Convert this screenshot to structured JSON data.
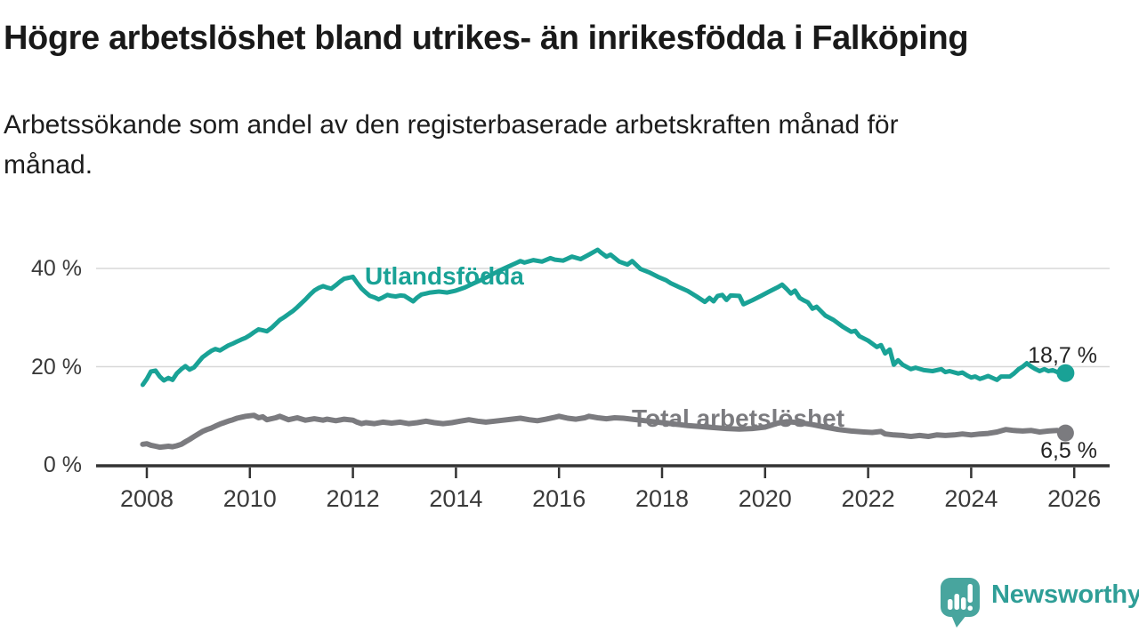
{
  "header": {
    "title": "Högre arbetslöshet bland utrikes- än inrikesfödda i Falköping",
    "subtitle_line1": "Arbetssökande som andel av den registerbaserade arbetskraften månad för",
    "subtitle_line2": "månad."
  },
  "branding": {
    "wordmark": "Newsworthy",
    "logo_color": "#48a59e",
    "wordmark_color": "#2f9e97"
  },
  "chart_data": {
    "type": "line",
    "title": "Högre arbetslöshet bland utrikes- än inrikesfödda i Falköping",
    "subtitle": "Arbetssökande som andel av den registerbaserade arbetskraften månad för månad.",
    "grid": true,
    "grid_color": "#d8d8d8",
    "axis_color": "#333333",
    "tick_label_color": "#3a3a3a",
    "legend_position": "inline-labels",
    "x_axis": {
      "ticks": [
        2008,
        2010,
        2012,
        2014,
        2016,
        2018,
        2020,
        2022,
        2024,
        2026
      ],
      "range": [
        2007.8,
        2026.6
      ]
    },
    "y_axis": {
      "unit": "%",
      "range": [
        0,
        46
      ],
      "ticks": [
        {
          "value": 0,
          "label": "0 %"
        },
        {
          "value": 20,
          "label": "20 %"
        },
        {
          "value": 40,
          "label": "40 %"
        }
      ]
    },
    "series": [
      {
        "name": "Utlandsfödda",
        "color": "#19a296",
        "end_value": 18.7,
        "end_label": "18,7 %",
        "points": [
          [
            2007.92,
            16.3
          ],
          [
            2008.0,
            17.5
          ],
          [
            2008.08,
            19.0
          ],
          [
            2008.17,
            19.2
          ],
          [
            2008.25,
            18.0
          ],
          [
            2008.33,
            17.2
          ],
          [
            2008.42,
            17.7
          ],
          [
            2008.5,
            17.3
          ],
          [
            2008.58,
            18.6
          ],
          [
            2008.67,
            19.5
          ],
          [
            2008.75,
            20.1
          ],
          [
            2008.83,
            19.4
          ],
          [
            2008.92,
            19.9
          ],
          [
            2009.0,
            20.9
          ],
          [
            2009.08,
            21.9
          ],
          [
            2009.17,
            22.6
          ],
          [
            2009.25,
            23.2
          ],
          [
            2009.33,
            23.6
          ],
          [
            2009.42,
            23.3
          ],
          [
            2009.5,
            23.8
          ],
          [
            2009.58,
            24.3
          ],
          [
            2009.67,
            24.7
          ],
          [
            2009.75,
            25.1
          ],
          [
            2009.83,
            25.5
          ],
          [
            2009.92,
            25.9
          ],
          [
            2010.0,
            26.4
          ],
          [
            2010.08,
            27.0
          ],
          [
            2010.17,
            27.6
          ],
          [
            2010.25,
            27.4
          ],
          [
            2010.33,
            27.2
          ],
          [
            2010.42,
            27.9
          ],
          [
            2010.5,
            28.7
          ],
          [
            2010.58,
            29.5
          ],
          [
            2010.67,
            30.1
          ],
          [
            2010.75,
            30.7
          ],
          [
            2010.83,
            31.3
          ],
          [
            2010.92,
            32.1
          ],
          [
            2011.0,
            32.9
          ],
          [
            2011.08,
            33.7
          ],
          [
            2011.17,
            34.7
          ],
          [
            2011.25,
            35.5
          ],
          [
            2011.33,
            36.0
          ],
          [
            2011.42,
            36.4
          ],
          [
            2011.5,
            36.1
          ],
          [
            2011.58,
            35.9
          ],
          [
            2011.67,
            36.6
          ],
          [
            2011.75,
            37.3
          ],
          [
            2011.83,
            37.9
          ],
          [
            2011.92,
            38.1
          ],
          [
            2012.0,
            38.3
          ],
          [
            2012.08,
            37.1
          ],
          [
            2012.17,
            35.9
          ],
          [
            2012.25,
            35.1
          ],
          [
            2012.33,
            34.4
          ],
          [
            2012.42,
            34.1
          ],
          [
            2012.5,
            33.7
          ],
          [
            2012.58,
            34.1
          ],
          [
            2012.67,
            34.6
          ],
          [
            2012.75,
            34.4
          ],
          [
            2012.83,
            34.3
          ],
          [
            2012.92,
            34.5
          ],
          [
            2013.0,
            34.4
          ],
          [
            2013.08,
            33.9
          ],
          [
            2013.17,
            33.3
          ],
          [
            2013.25,
            34.1
          ],
          [
            2013.33,
            34.7
          ],
          [
            2013.42,
            34.9
          ],
          [
            2013.5,
            35.1
          ],
          [
            2013.67,
            35.3
          ],
          [
            2013.83,
            35.1
          ],
          [
            2014.0,
            35.5
          ],
          [
            2014.17,
            36.1
          ],
          [
            2014.33,
            36.9
          ],
          [
            2014.5,
            37.7
          ],
          [
            2014.67,
            38.6
          ],
          [
            2014.83,
            39.5
          ],
          [
            2015.0,
            40.3
          ],
          [
            2015.17,
            41.1
          ],
          [
            2015.25,
            41.5
          ],
          [
            2015.33,
            41.2
          ],
          [
            2015.5,
            41.7
          ],
          [
            2015.67,
            41.4
          ],
          [
            2015.83,
            42.1
          ],
          [
            2015.92,
            41.8
          ],
          [
            2016.08,
            41.6
          ],
          [
            2016.25,
            42.4
          ],
          [
            2016.42,
            41.9
          ],
          [
            2016.58,
            42.8
          ],
          [
            2016.75,
            43.8
          ],
          [
            2016.83,
            43.1
          ],
          [
            2016.92,
            42.4
          ],
          [
            2017.0,
            42.8
          ],
          [
            2017.17,
            41.4
          ],
          [
            2017.33,
            40.8
          ],
          [
            2017.42,
            41.5
          ],
          [
            2017.58,
            39.9
          ],
          [
            2017.75,
            39.2
          ],
          [
            2017.92,
            38.3
          ],
          [
            2018.08,
            37.6
          ],
          [
            2018.17,
            37.0
          ],
          [
            2018.33,
            36.2
          ],
          [
            2018.5,
            35.4
          ],
          [
            2018.67,
            34.3
          ],
          [
            2018.83,
            33.2
          ],
          [
            2018.92,
            34.0
          ],
          [
            2019.0,
            33.3
          ],
          [
            2019.08,
            34.4
          ],
          [
            2019.17,
            34.6
          ],
          [
            2019.25,
            33.6
          ],
          [
            2019.33,
            34.5
          ],
          [
            2019.5,
            34.4
          ],
          [
            2019.58,
            32.7
          ],
          [
            2019.75,
            33.5
          ],
          [
            2019.92,
            34.4
          ],
          [
            2020.08,
            35.3
          ],
          [
            2020.25,
            36.2
          ],
          [
            2020.33,
            36.7
          ],
          [
            2020.42,
            35.8
          ],
          [
            2020.5,
            34.9
          ],
          [
            2020.58,
            35.5
          ],
          [
            2020.67,
            34.0
          ],
          [
            2020.75,
            33.5
          ],
          [
            2020.83,
            33.1
          ],
          [
            2020.92,
            31.8
          ],
          [
            2021.0,
            32.2
          ],
          [
            2021.17,
            30.4
          ],
          [
            2021.33,
            29.5
          ],
          [
            2021.5,
            28.2
          ],
          [
            2021.67,
            27.1
          ],
          [
            2021.75,
            27.3
          ],
          [
            2021.83,
            26.2
          ],
          [
            2022.0,
            25.3
          ],
          [
            2022.17,
            24.0
          ],
          [
            2022.25,
            24.4
          ],
          [
            2022.33,
            22.7
          ],
          [
            2022.42,
            23.5
          ],
          [
            2022.5,
            20.4
          ],
          [
            2022.58,
            21.3
          ],
          [
            2022.67,
            20.4
          ],
          [
            2022.83,
            19.5
          ],
          [
            2022.92,
            19.8
          ],
          [
            2023.08,
            19.3
          ],
          [
            2023.25,
            19.1
          ],
          [
            2023.42,
            19.5
          ],
          [
            2023.5,
            18.9
          ],
          [
            2023.58,
            19.1
          ],
          [
            2023.75,
            18.6
          ],
          [
            2023.83,
            18.8
          ],
          [
            2023.92,
            18.2
          ],
          [
            2024.0,
            17.8
          ],
          [
            2024.08,
            18.0
          ],
          [
            2024.17,
            17.5
          ],
          [
            2024.25,
            17.8
          ],
          [
            2024.33,
            18.1
          ],
          [
            2024.5,
            17.3
          ],
          [
            2024.58,
            18.0
          ],
          [
            2024.75,
            18.0
          ],
          [
            2024.83,
            18.6
          ],
          [
            2024.92,
            19.5
          ],
          [
            2025.0,
            20.0
          ],
          [
            2025.08,
            20.7
          ],
          [
            2025.17,
            20.0
          ],
          [
            2025.25,
            19.5
          ],
          [
            2025.33,
            19.1
          ],
          [
            2025.42,
            19.5
          ],
          [
            2025.5,
            19.1
          ],
          [
            2025.58,
            19.3
          ],
          [
            2025.67,
            18.9
          ],
          [
            2025.83,
            18.7
          ]
        ]
      },
      {
        "name": "Total arbetslöshet",
        "color": "#7b7b7f",
        "end_value": 6.5,
        "end_label": "6,5 %",
        "points": [
          [
            2007.92,
            4.2
          ],
          [
            2008.0,
            4.3
          ],
          [
            2008.08,
            4.0
          ],
          [
            2008.17,
            3.8
          ],
          [
            2008.25,
            3.6
          ],
          [
            2008.33,
            3.7
          ],
          [
            2008.42,
            3.8
          ],
          [
            2008.5,
            3.7
          ],
          [
            2008.58,
            3.9
          ],
          [
            2008.67,
            4.2
          ],
          [
            2008.75,
            4.7
          ],
          [
            2008.83,
            5.2
          ],
          [
            2008.92,
            5.8
          ],
          [
            2009.0,
            6.3
          ],
          [
            2009.08,
            6.8
          ],
          [
            2009.17,
            7.2
          ],
          [
            2009.25,
            7.5
          ],
          [
            2009.33,
            7.9
          ],
          [
            2009.42,
            8.3
          ],
          [
            2009.5,
            8.6
          ],
          [
            2009.58,
            8.9
          ],
          [
            2009.67,
            9.2
          ],
          [
            2009.75,
            9.5
          ],
          [
            2009.83,
            9.7
          ],
          [
            2009.92,
            9.9
          ],
          [
            2010.08,
            10.1
          ],
          [
            2010.17,
            9.6
          ],
          [
            2010.25,
            9.8
          ],
          [
            2010.33,
            9.2
          ],
          [
            2010.5,
            9.6
          ],
          [
            2010.58,
            9.9
          ],
          [
            2010.75,
            9.2
          ],
          [
            2010.92,
            9.6
          ],
          [
            2011.08,
            9.1
          ],
          [
            2011.25,
            9.4
          ],
          [
            2011.42,
            9.1
          ],
          [
            2011.5,
            9.3
          ],
          [
            2011.67,
            9.0
          ],
          [
            2011.83,
            9.3
          ],
          [
            2012.0,
            9.1
          ],
          [
            2012.08,
            8.7
          ],
          [
            2012.17,
            8.4
          ],
          [
            2012.25,
            8.6
          ],
          [
            2012.42,
            8.4
          ],
          [
            2012.58,
            8.7
          ],
          [
            2012.75,
            8.5
          ],
          [
            2012.92,
            8.7
          ],
          [
            2013.08,
            8.4
          ],
          [
            2013.25,
            8.6
          ],
          [
            2013.42,
            8.9
          ],
          [
            2013.58,
            8.6
          ],
          [
            2013.75,
            8.4
          ],
          [
            2013.92,
            8.6
          ],
          [
            2014.08,
            8.9
          ],
          [
            2014.25,
            9.2
          ],
          [
            2014.42,
            8.9
          ],
          [
            2014.58,
            8.7
          ],
          [
            2014.75,
            8.9
          ],
          [
            2014.92,
            9.1
          ],
          [
            2015.08,
            9.3
          ],
          [
            2015.25,
            9.5
          ],
          [
            2015.42,
            9.2
          ],
          [
            2015.58,
            9.0
          ],
          [
            2015.75,
            9.3
          ],
          [
            2015.92,
            9.7
          ],
          [
            2016.0,
            9.9
          ],
          [
            2016.17,
            9.5
          ],
          [
            2016.33,
            9.3
          ],
          [
            2016.5,
            9.6
          ],
          [
            2016.58,
            9.9
          ],
          [
            2016.75,
            9.6
          ],
          [
            2016.92,
            9.4
          ],
          [
            2017.08,
            9.6
          ],
          [
            2017.25,
            9.5
          ],
          [
            2017.42,
            9.3
          ],
          [
            2017.58,
            9.1
          ],
          [
            2017.75,
            8.9
          ],
          [
            2018.0,
            8.6
          ],
          [
            2018.25,
            8.3
          ],
          [
            2018.5,
            8.0
          ],
          [
            2018.75,
            7.8
          ],
          [
            2019.0,
            7.6
          ],
          [
            2019.25,
            7.4
          ],
          [
            2019.5,
            7.3
          ],
          [
            2019.75,
            7.4
          ],
          [
            2020.0,
            7.7
          ],
          [
            2020.25,
            8.5
          ],
          [
            2020.42,
            8.8
          ],
          [
            2020.67,
            8.6
          ],
          [
            2020.92,
            8.2
          ],
          [
            2021.17,
            7.7
          ],
          [
            2021.42,
            7.2
          ],
          [
            2021.67,
            6.9
          ],
          [
            2021.92,
            6.7
          ],
          [
            2022.08,
            6.6
          ],
          [
            2022.25,
            6.8
          ],
          [
            2022.33,
            6.3
          ],
          [
            2022.5,
            6.1
          ],
          [
            2022.67,
            6.0
          ],
          [
            2022.83,
            5.8
          ],
          [
            2023.0,
            6.0
          ],
          [
            2023.17,
            5.8
          ],
          [
            2023.33,
            6.1
          ],
          [
            2023.5,
            6.0
          ],
          [
            2023.67,
            6.1
          ],
          [
            2023.83,
            6.3
          ],
          [
            2024.0,
            6.1
          ],
          [
            2024.17,
            6.3
          ],
          [
            2024.33,
            6.4
          ],
          [
            2024.5,
            6.7
          ],
          [
            2024.67,
            7.2
          ],
          [
            2024.83,
            7.0
          ],
          [
            2025.0,
            6.9
          ],
          [
            2025.17,
            7.0
          ],
          [
            2025.33,
            6.7
          ],
          [
            2025.5,
            6.9
          ],
          [
            2025.67,
            7.0
          ],
          [
            2025.83,
            6.5
          ]
        ]
      }
    ]
  }
}
